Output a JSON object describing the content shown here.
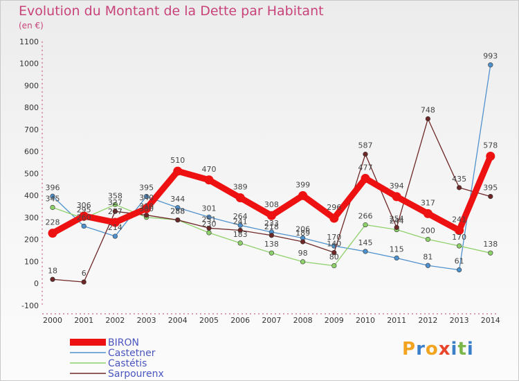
{
  "header": {
    "title": "Evolution du Montant de la Dette par Habitant",
    "unit": "(en €)"
  },
  "logo": {
    "letters": [
      "P",
      "r",
      "o",
      "x",
      "i",
      "t",
      "i"
    ],
    "colors": [
      "#f2a320",
      "#3a7fc8",
      "#f2a320",
      "#e8452b",
      "#3a7fc8",
      "#7ab648",
      "#3a7fc8"
    ]
  },
  "chart_data": {
    "type": "line",
    "x": [
      "2000",
      "2001",
      "2002",
      "2003",
      "2004",
      "2005",
      "2006",
      "2007",
      "2008",
      "2009",
      "2010",
      "2011",
      "2012",
      "2013",
      "2014"
    ],
    "ylim": [
      -100,
      1100
    ],
    "yticks": [
      -100,
      0,
      100,
      200,
      300,
      400,
      500,
      600,
      700,
      800,
      900,
      1000,
      1100
    ],
    "grid": false,
    "legend": "bottom-left",
    "series": [
      {
        "name": "BIRON",
        "color": "#ee1111",
        "values": [
          228,
          306,
          277,
          340,
          510,
          470,
          389,
          308,
          399,
          296,
          477,
          394,
          317,
          241,
          578
        ]
      },
      {
        "name": "Castetner",
        "color": "#4f91cc",
        "values": [
          396,
          260,
          214,
          395,
          344,
          301,
          264,
          233,
          206,
          170,
          145,
          115,
          81,
          61,
          993
        ]
      },
      {
        "name": "Castétis",
        "color": "#8ed16b",
        "values": [
          345,
          295,
          358,
          300,
          288,
          230,
          183,
          138,
          98,
          80,
          266,
          244,
          200,
          170,
          138
        ]
      },
      {
        "name": "Sarpourenx",
        "color": "#6e2727",
        "values": [
          18,
          6,
          327,
          310,
          288,
          251,
          241,
          218,
          189,
          140,
          587,
          254,
          748,
          435,
          395
        ]
      }
    ]
  }
}
